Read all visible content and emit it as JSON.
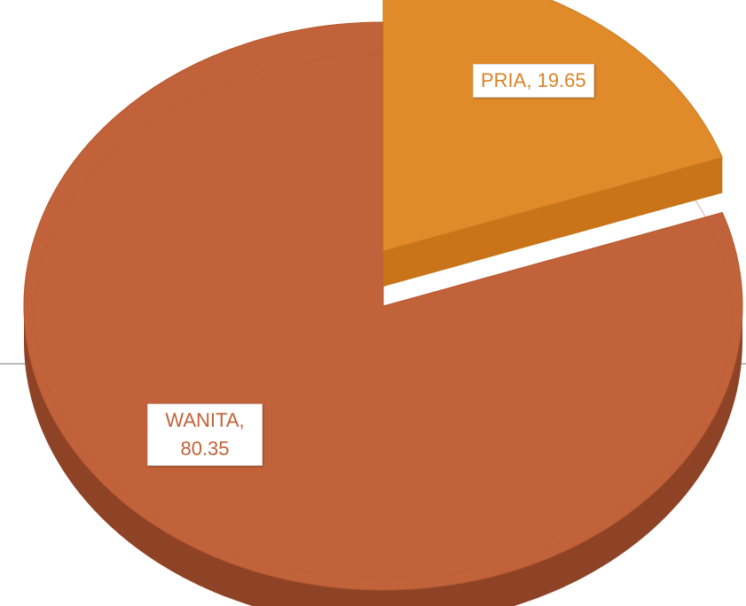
{
  "chart_data": {
    "type": "pie",
    "title": "",
    "slices": [
      {
        "label": "PRIA",
        "value": 19.65,
        "color": "#E08A2A",
        "label_text": "PRIA, 19.65"
      },
      {
        "label": "WANITA",
        "value": 80.35,
        "color": "#C2623A",
        "label_text": "WANITA, 80.35"
      }
    ],
    "style": "3d-exploded",
    "legend": "none"
  },
  "labels": {
    "pria_name": "PRIA,",
    "pria_value": "19.65",
    "wanita_name": "WANITA,",
    "wanita_value": "80.35"
  },
  "colors": {
    "pria_top": "#E08A2A",
    "pria_side": "#C97418",
    "wanita_top": "#C2623A",
    "wanita_side": "#8E4326",
    "pria_label_text": "#D98326",
    "wanita_label_text": "#C2623A"
  }
}
